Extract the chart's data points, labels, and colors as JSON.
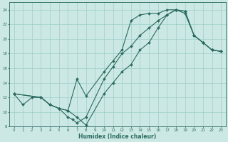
{
  "xlabel": "Humidex (Indice chaleur)",
  "bg_color": "#cce8e4",
  "grid_color": "#9fcfca",
  "line_color": "#2a6b60",
  "xlim": [
    -0.5,
    23.5
  ],
  "ylim": [
    8,
    25
  ],
  "xticks": [
    0,
    1,
    2,
    3,
    4,
    5,
    6,
    7,
    8,
    9,
    10,
    11,
    12,
    13,
    14,
    15,
    16,
    17,
    18,
    19,
    20,
    21,
    22,
    23
  ],
  "yticks": [
    8,
    10,
    12,
    14,
    16,
    18,
    20,
    22,
    24
  ],
  "curve1_x": [
    0,
    1,
    2,
    3,
    4,
    5,
    6,
    6.5,
    7,
    8,
    10,
    11,
    12,
    13,
    14,
    15,
    16,
    17,
    18,
    19,
    20,
    21,
    22,
    23
  ],
  "curve1_y": [
    12.5,
    11,
    12,
    12,
    11,
    10.5,
    9.3,
    9.0,
    8.5,
    9.3,
    14.5,
    16.2,
    18,
    19,
    20.5,
    21.5,
    22.5,
    23.3,
    24,
    23.5,
    20.5,
    19.5,
    18.5,
    18.3
  ],
  "curve2_x": [
    0,
    3,
    4,
    5,
    6,
    7,
    8,
    10,
    11,
    12,
    13,
    14,
    15,
    16,
    17,
    18,
    19,
    20,
    21,
    22,
    23
  ],
  "curve2_y": [
    12.5,
    12,
    11,
    10.5,
    10.2,
    14.5,
    12.2,
    15.5,
    17,
    18.5,
    22.5,
    23.3,
    23.5,
    23.5,
    24,
    24,
    23.8,
    20.5,
    19.5,
    18.5,
    18.3
  ],
  "curve3_x": [
    0,
    3,
    4,
    5,
    6,
    7,
    8,
    10,
    11,
    12,
    13,
    14,
    15,
    16,
    17,
    18,
    19,
    20,
    21,
    22,
    23
  ],
  "curve3_y": [
    12.5,
    12,
    11,
    10.5,
    10.2,
    9.3,
    8.2,
    12.5,
    14,
    15.5,
    16.5,
    18.5,
    19.5,
    21.5,
    23.3,
    24,
    23.8,
    20.5,
    19.5,
    18.5,
    18.3
  ]
}
